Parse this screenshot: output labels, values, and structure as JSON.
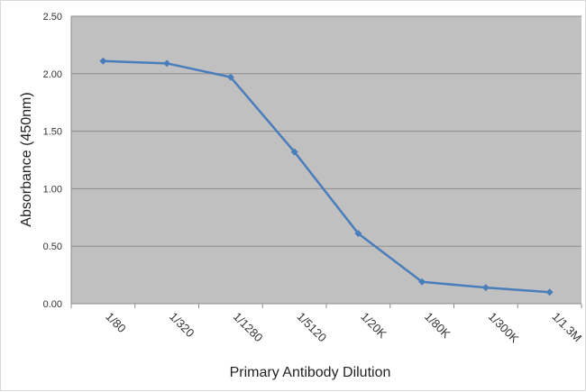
{
  "chart_data": {
    "type": "line",
    "xlabel": "Primary Antibody Dilution",
    "ylabel": "Absorbance (450nm)",
    "categories": [
      "1/80",
      "1/320",
      "1/1280",
      "1/5120",
      "1/20K",
      "1/80K",
      "1/300K",
      "1/1.3M"
    ],
    "series": [
      {
        "values": [
          2.11,
          2.09,
          1.97,
          1.32,
          0.61,
          0.19,
          0.14,
          0.1
        ]
      }
    ],
    "ylim": [
      0,
      2.5
    ],
    "yticks": [
      "0.00",
      "0.50",
      "1.00",
      "1.50",
      "2.00",
      "2.50"
    ],
    "grid": true,
    "legend": "none",
    "colors": {
      "plot_background": "#c0c0c0",
      "series": "#4a7ebb",
      "gridline": "#8c8c8c"
    }
  }
}
